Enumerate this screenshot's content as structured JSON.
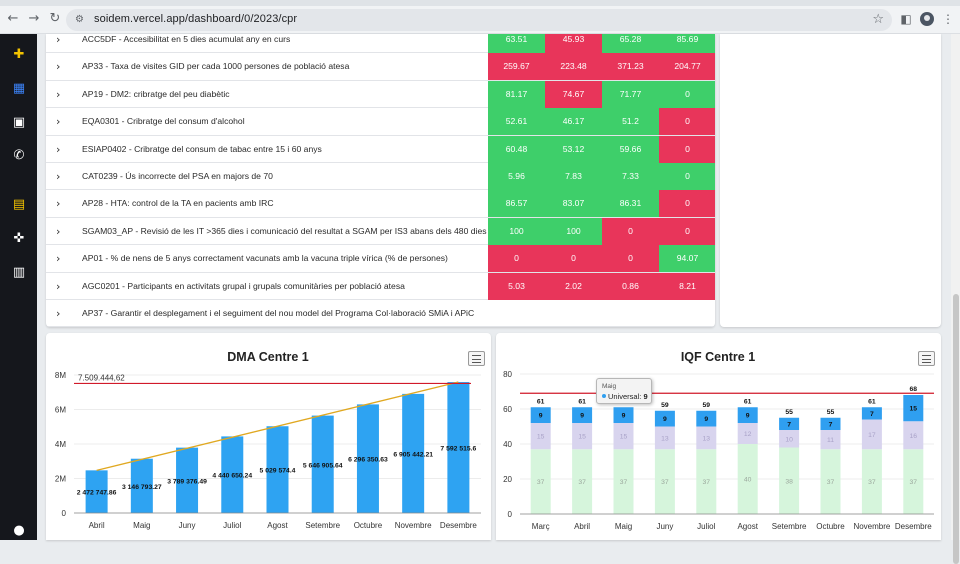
{
  "browser": {
    "url": "soidem.vercel.app/dashboard/0/2023/cpr"
  },
  "icons": {
    "back": "back-arrow-icon",
    "forward": "forward-arrow-icon",
    "reload": "reload-icon",
    "site": "site-info-icon",
    "star": "bookmark-star-icon",
    "sidepanel": "side-panel-icon",
    "profile": "profile-avatar-icon",
    "menu": "kebab-menu-icon"
  },
  "sidebar": {
    "items": [
      {
        "name": "plus-icon",
        "glyph": "✚",
        "color": "#f2c200"
      },
      {
        "name": "dashboard-grid-icon",
        "glyph": "▦",
        "color": "#3b82f6"
      },
      {
        "name": "user-card-icon",
        "glyph": "▣",
        "color": "#ffffff"
      },
      {
        "name": "phone-icon",
        "glyph": "✆",
        "color": "#ffffff"
      },
      {
        "name": "lock-closed-icon",
        "glyph": "▤",
        "color": "#f2c200"
      },
      {
        "name": "gamepad-icon",
        "glyph": "✜",
        "color": "#ffffff"
      },
      {
        "name": "lock-open-icon",
        "glyph": "▥",
        "color": "#ffffff"
      },
      {
        "name": "user-icon",
        "glyph": "●",
        "color": "#ffffff"
      }
    ]
  },
  "table": {
    "rows": [
      {
        "label": "ACC5DF - Accesibilitat en 5 dies acumulat any en curs",
        "values": [
          "63.51",
          "45.93",
          "65.28",
          "85.69"
        ],
        "status": [
          "g",
          "r",
          "g",
          "g"
        ]
      },
      {
        "label": "AP33 - Taxa de visites GID per cada 1000 persones de població atesa",
        "values": [
          "259.67",
          "223.48",
          "371.23",
          "204.77"
        ],
        "status": [
          "r",
          "r",
          "r",
          "r"
        ]
      },
      {
        "label": "AP19 - DM2: cribratge del peu diabètic",
        "values": [
          "81.17",
          "74.67",
          "71.77",
          "0"
        ],
        "status": [
          "g",
          "r",
          "g",
          "g"
        ]
      },
      {
        "label": "EQA0301 - Cribratge del consum d'alcohol",
        "values": [
          "52.61",
          "46.17",
          "51.2",
          "0"
        ],
        "status": [
          "g",
          "g",
          "g",
          "r"
        ]
      },
      {
        "label": "ESIAP0402 - Cribratge del consum de tabac entre 15 i 60 anys",
        "values": [
          "60.48",
          "53.12",
          "59.66",
          "0"
        ],
        "status": [
          "g",
          "g",
          "g",
          "r"
        ]
      },
      {
        "label": "CAT0239 - Ús incorrecte del PSA en majors de 70",
        "values": [
          "5.96",
          "7.83",
          "7.33",
          "0"
        ],
        "status": [
          "g",
          "g",
          "g",
          "g"
        ]
      },
      {
        "label": "AP28 - HTA: control de la TA en pacients amb IRC",
        "values": [
          "86.57",
          "83.07",
          "86.31",
          "0"
        ],
        "status": [
          "g",
          "g",
          "g",
          "r"
        ]
      },
      {
        "label": "SGAM03_AP - Revisió de les IT >365 dies i comunicació del resultat a SGAM per IS3 abans dels 480 dies",
        "values": [
          "100",
          "100",
          "0",
          "0"
        ],
        "status": [
          "g",
          "g",
          "r",
          "r"
        ]
      },
      {
        "label": "AP01 - % de nens de 5 anys correctament vacunats amb la vacuna triple vírica (% de persones)",
        "values": [
          "0",
          "0",
          "0",
          "94.07"
        ],
        "status": [
          "r",
          "r",
          "r",
          "g"
        ]
      },
      {
        "label": "AGC0201 - Participants en activitats grupal i grupals comunitàries per població atesa",
        "values": [
          "5.03",
          "2.02",
          "0.86",
          "8.21"
        ],
        "status": [
          "r",
          "r",
          "r",
          "r"
        ]
      },
      {
        "label": "AP37 - Garantir el desplegament i el seguiment del nou model del Programa Col·laboració SMiA i APiC",
        "values": [],
        "status": []
      }
    ]
  },
  "chart_data": [
    {
      "type": "bar",
      "title": "DMA Centre 1",
      "categories": [
        "Abril",
        "Maig",
        "Juny",
        "Juliol",
        "Agost",
        "Setembre",
        "Octubre",
        "Novembre",
        "Desembre"
      ],
      "values": [
        2472747.86,
        3146793.27,
        3789376.49,
        4440650.24,
        5029574.4,
        5646905.64,
        6296350.63,
        6905442.21,
        7592515.6
      ],
      "value_labels": [
        "2 472 747.86",
        "3 146 793.27",
        "3 789 376.49",
        "4 440 650.24",
        "5 029 574.4",
        "5 646 905.64",
        "6 296 350.63",
        "6 905 442.21",
        "7 592 515.6"
      ],
      "ylim": [
        0,
        8000000
      ],
      "yticks": [
        0,
        2000000,
        4000000,
        6000000,
        8000000
      ],
      "ytick_labels": [
        "0",
        "2M",
        "4M",
        "6M",
        "8M"
      ],
      "reference_line": {
        "value": 7509444.62,
        "label": "7.509.444,62",
        "color": "#d11a2a"
      },
      "trend_line": {
        "from": 2472747.86,
        "to": 7592515.6,
        "color": "#e0a820"
      },
      "bar_color": "#2ea3f2",
      "grid": true
    },
    {
      "type": "bar",
      "stacked": true,
      "title": "IQF Centre 1",
      "categories": [
        "Març",
        "Abril",
        "Maig",
        "Juny",
        "Juliol",
        "Agost",
        "Setembre",
        "Octubre",
        "Novembre",
        "Desembre"
      ],
      "series": [
        {
          "values": [
            37,
            37,
            37,
            37,
            37,
            40,
            38,
            37,
            37,
            37
          ],
          "color": "#d6f5dc"
        },
        {
          "values": [
            15,
            15,
            15,
            13,
            13,
            12,
            10,
            11,
            17,
            16
          ],
          "color": "#d8d4ee"
        },
        {
          "name": "Universal",
          "values": [
            9,
            9,
            9,
            9,
            9,
            9,
            7,
            7,
            7,
            15
          ],
          "color": "#2f9ff0"
        }
      ],
      "totals": [
        61,
        61,
        61,
        59,
        59,
        61,
        55,
        55,
        61,
        68
      ],
      "ylim": [
        0,
        80
      ],
      "yticks": [
        0,
        20,
        40,
        60,
        80
      ],
      "reference_line": {
        "value": 69,
        "color": "#d11a2a"
      },
      "grid": true,
      "tooltip": {
        "category": "Maig",
        "series": "Universal:",
        "value": "9"
      }
    }
  ]
}
